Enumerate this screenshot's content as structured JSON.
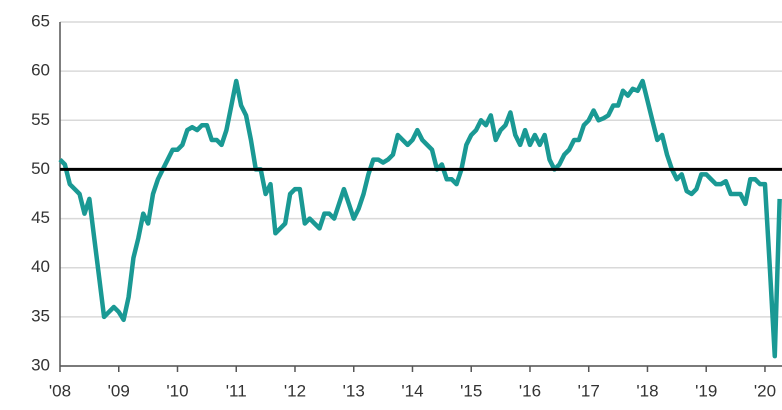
{
  "chart_data": {
    "type": "line",
    "x": [
      2008,
      2008.083,
      2008.167,
      2008.25,
      2008.333,
      2008.417,
      2008.5,
      2008.583,
      2008.667,
      2008.75,
      2008.833,
      2008.917,
      2009,
      2009.083,
      2009.167,
      2009.25,
      2009.333,
      2009.417,
      2009.5,
      2009.583,
      2009.667,
      2009.75,
      2009.833,
      2009.917,
      2010,
      2010.083,
      2010.167,
      2010.25,
      2010.333,
      2010.417,
      2010.5,
      2010.583,
      2010.667,
      2010.75,
      2010.833,
      2010.917,
      2011,
      2011.083,
      2011.167,
      2011.25,
      2011.333,
      2011.417,
      2011.5,
      2011.583,
      2011.667,
      2011.75,
      2011.833,
      2011.917,
      2012,
      2012.083,
      2012.167,
      2012.25,
      2012.333,
      2012.417,
      2012.5,
      2012.583,
      2012.667,
      2012.75,
      2012.833,
      2012.917,
      2013,
      2013.083,
      2013.167,
      2013.25,
      2013.333,
      2013.417,
      2013.5,
      2013.583,
      2013.667,
      2013.75,
      2013.833,
      2013.917,
      2014,
      2014.083,
      2014.167,
      2014.25,
      2014.333,
      2014.417,
      2014.5,
      2014.583,
      2014.667,
      2014.75,
      2014.833,
      2014.917,
      2015,
      2015.083,
      2015.167,
      2015.25,
      2015.333,
      2015.417,
      2015.5,
      2015.583,
      2015.667,
      2015.75,
      2015.833,
      2015.917,
      2016,
      2016.083,
      2016.167,
      2016.25,
      2016.333,
      2016.417,
      2016.5,
      2016.583,
      2016.667,
      2016.75,
      2016.833,
      2016.917,
      2017,
      2017.083,
      2017.167,
      2017.25,
      2017.333,
      2017.417,
      2017.5,
      2017.583,
      2017.667,
      2017.75,
      2017.833,
      2017.917,
      2018,
      2018.083,
      2018.167,
      2018.25,
      2018.333,
      2018.417,
      2018.5,
      2018.583,
      2018.667,
      2018.75,
      2018.833,
      2018.917,
      2019,
      2019.083,
      2019.167,
      2019.25,
      2019.333,
      2019.417,
      2019.5,
      2019.583,
      2019.667,
      2019.75,
      2019.833,
      2019.917,
      2020,
      2020.083,
      2020.167,
      2020.25
    ],
    "series": [
      {
        "color": "#1a9994",
        "values": [
          51,
          50.5,
          48.5,
          48,
          47.5,
          45.5,
          47,
          43,
          39,
          35,
          35.5,
          36,
          35.5,
          34.7,
          37,
          41,
          43,
          45.5,
          44.5,
          47.5,
          49,
          50,
          51,
          52,
          52,
          52.5,
          54,
          54.3,
          54,
          54.5,
          54.5,
          53,
          53,
          52.5,
          54,
          56.5,
          59,
          56.5,
          55.5,
          53,
          50,
          50,
          47.5,
          48.5,
          43.5,
          44,
          44.5,
          47.5,
          48,
          48,
          44.5,
          45,
          44.5,
          44,
          45.5,
          45.5,
          45,
          46.5,
          48,
          46.5,
          45,
          46,
          47.5,
          49.5,
          51,
          51,
          50.7,
          51,
          51.5,
          53.5,
          53,
          52.5,
          53,
          54,
          53,
          52.5,
          52,
          50,
          50.5,
          49,
          49,
          48.5,
          50,
          52.5,
          53.5,
          54,
          55,
          54.5,
          55.5,
          53,
          54,
          54.5,
          55.8,
          53.5,
          52.5,
          54,
          52.5,
          53.5,
          52.5,
          53.5,
          51,
          50,
          50.5,
          51.5,
          52,
          53,
          53,
          54.5,
          55,
          56,
          55,
          55.2,
          55.5,
          56.5,
          56.5,
          58,
          57.5,
          58.2,
          58,
          59,
          57,
          55,
          53,
          53.5,
          51.5,
          50,
          49,
          49.5,
          47.8,
          47.5,
          48,
          49.5,
          49.5,
          49,
          48.5,
          48.5,
          48.8,
          47.5,
          47.5,
          47.5,
          46.5,
          49,
          49,
          48.5,
          48.5,
          40,
          31,
          47
        ]
      }
    ],
    "reference_line": 50,
    "xlim": [
      2008,
      2020.29
    ],
    "xticks": [
      {
        "value": 2008,
        "label": "'08"
      },
      {
        "value": 2009,
        "label": "'09"
      },
      {
        "value": 2010,
        "label": "'10"
      },
      {
        "value": 2011,
        "label": "'11"
      },
      {
        "value": 2012,
        "label": "'12"
      },
      {
        "value": 2013,
        "label": "'13"
      },
      {
        "value": 2014,
        "label": "'14"
      },
      {
        "value": 2015,
        "label": "'15"
      },
      {
        "value": 2016,
        "label": "'16"
      },
      {
        "value": 2017,
        "label": "'17"
      },
      {
        "value": 2018,
        "label": "'18"
      },
      {
        "value": 2019,
        "label": "'19"
      },
      {
        "value": 2020,
        "label": "'20"
      }
    ],
    "ylim": [
      30,
      65
    ],
    "yticks": [
      30,
      35,
      40,
      45,
      50,
      55,
      60,
      65
    ],
    "grid": true
  }
}
